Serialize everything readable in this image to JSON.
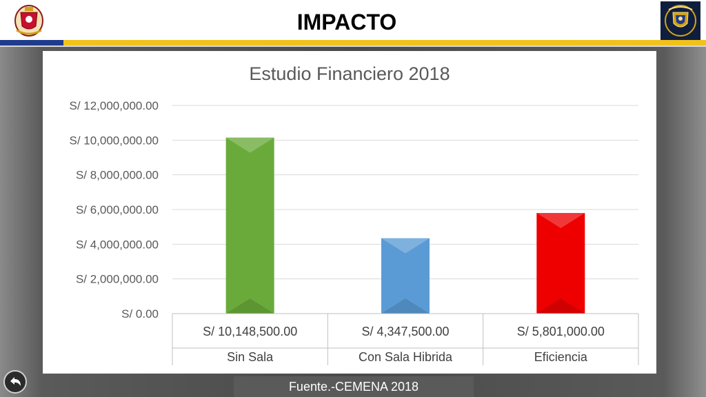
{
  "header": {
    "title": "IMPACTO",
    "left_logo_icon": "naval-school-crest-icon",
    "right_logo_icon": "navy-shield-crest-icon"
  },
  "colors": {
    "band_blue": "#1f3b8c",
    "band_gold": "#f2c21b",
    "bar_green": "#6aaa3a",
    "bar_blue": "#5b9bd5",
    "bar_red": "#ee0000"
  },
  "chart_data": {
    "type": "bar",
    "title": "Estudio Financiero 2018",
    "categories": [
      "Sin Sala",
      "Con Sala Hibrida",
      "Eficiencia"
    ],
    "values": [
      10148500,
      4347500,
      5801000
    ],
    "value_labels": [
      "S/ 10,148,500.00",
      "S/ 4,347,500.00",
      "S/ 5,801,000.00"
    ],
    "bar_colors": [
      "#6aaa3a",
      "#5b9bd5",
      "#ee0000"
    ],
    "ylim": [
      0,
      12000000
    ],
    "yticks": [
      0,
      2000000,
      4000000,
      6000000,
      8000000,
      10000000,
      12000000
    ],
    "ytick_labels": [
      "S/ 0.00",
      "S/ 2,000,000.00",
      "S/ 4,000,000.00",
      "S/ 6,000,000.00",
      "S/ 8,000,000.00",
      "S/ 10,000,000.00",
      "S/ 12,000,000.00"
    ],
    "grid": true,
    "data_table": true
  },
  "footer": {
    "source": "Fuente.-CEMENA 2018",
    "back_icon": "back-arrow-icon"
  }
}
